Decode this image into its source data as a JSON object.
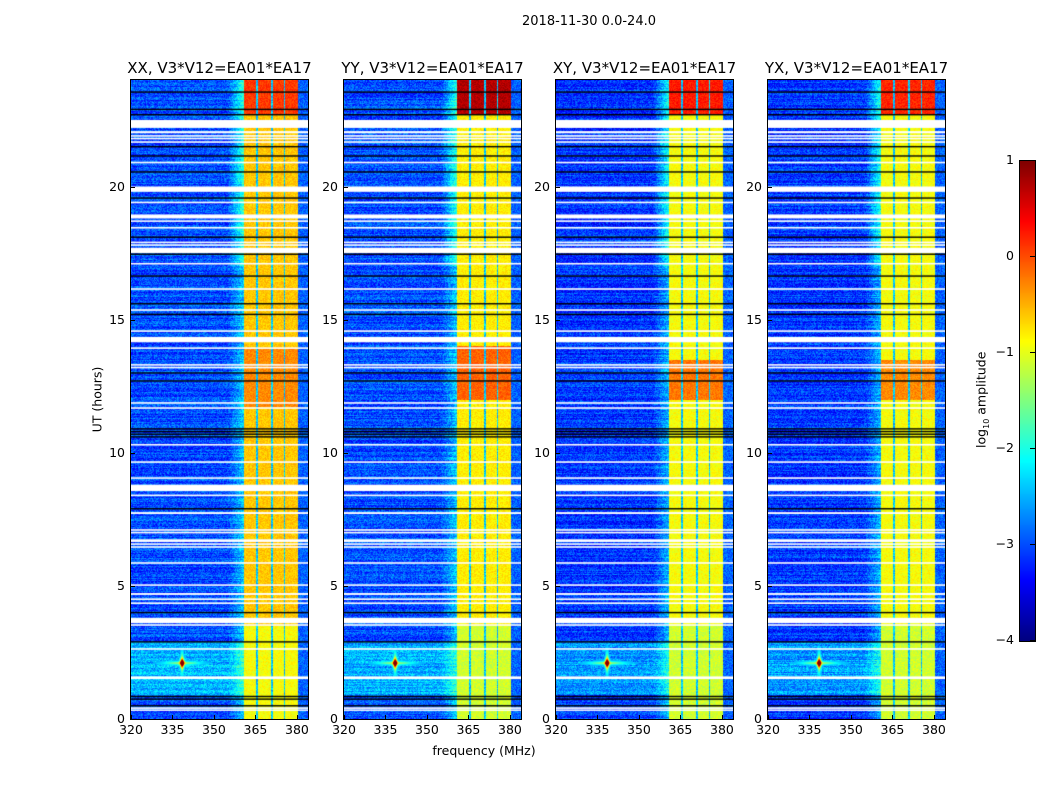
{
  "figure": {
    "suptitle": "2018-11-30 0.0-24.0",
    "xlabel": "frequency (MHz)",
    "ylabel": "UT (hours)",
    "colorbar": {
      "label_prefix": "log",
      "label_sub": "10",
      "label_suffix": " amplitude",
      "range": [
        -4,
        1
      ],
      "ticks": [
        "1",
        "0",
        "−1",
        "−2",
        "−3",
        "−4"
      ],
      "tick_values": [
        1,
        0,
        -1,
        -2,
        -3,
        -4
      ],
      "colormap": "jet"
    }
  },
  "chart_data": [
    {
      "type": "heatmap",
      "title": "XX, V3*V12=EA01*EA17",
      "xlim": [
        320,
        384
      ],
      "ylim": [
        0,
        24
      ],
      "xticks": [
        320,
        335,
        350,
        365,
        380
      ],
      "yticks": [
        0,
        5,
        10,
        15,
        20
      ],
      "background_level": -3.0,
      "band_levels": [
        [
          22.7,
          24,
          0.1
        ],
        [
          11.7,
          13.9,
          -0.3
        ],
        [
          3.5,
          22.7,
          -0.6
        ],
        [
          0,
          3.5,
          -0.9
        ]
      ]
    },
    {
      "type": "heatmap",
      "title": "YY, V3*V12=EA01*EA17",
      "xlim": [
        320,
        384
      ],
      "ylim": [
        0,
        24
      ],
      "xticks": [
        320,
        335,
        350,
        365,
        380
      ],
      "yticks": [
        0,
        5,
        10,
        15,
        20
      ],
      "background_level": -3.0,
      "band_levels": [
        [
          22.7,
          24,
          0.75
        ],
        [
          12,
          14,
          -0.1
        ],
        [
          3.5,
          22.7,
          -0.8
        ],
        [
          0,
          3.5,
          -1.1
        ]
      ]
    },
    {
      "type": "heatmap",
      "title": "XY, V3*V12=EA01*EA17",
      "xlim": [
        320,
        384
      ],
      "ylim": [
        0,
        24
      ],
      "xticks": [
        320,
        335,
        350,
        365,
        380
      ],
      "yticks": [
        0,
        5,
        10,
        15,
        20
      ],
      "background_level": -3.1,
      "band_levels": [
        [
          22.7,
          24,
          0.25
        ],
        [
          12,
          13.5,
          -0.2
        ],
        [
          3.5,
          22.7,
          -0.9
        ],
        [
          0,
          3.5,
          -1.1
        ]
      ]
    },
    {
      "type": "heatmap",
      "title": "YX, V3*V12=EA01*EA17",
      "xlim": [
        320,
        384
      ],
      "ylim": [
        0,
        24
      ],
      "xticks": [
        320,
        335,
        350,
        365,
        380
      ],
      "yticks": [
        0,
        5,
        10,
        15,
        20
      ],
      "background_level": -3.1,
      "band_levels": [
        [
          22.7,
          24,
          0.2
        ],
        [
          12,
          13.5,
          -0.3
        ],
        [
          3.5,
          22.7,
          -0.9
        ],
        [
          0,
          3.5,
          -1.1
        ]
      ]
    }
  ],
  "rfi_band_mhz": [
    360.7,
    380.4
  ],
  "channel_gaps_mhz": [
    365.5,
    371.0,
    375.6
  ],
  "source": {
    "freq_mhz": 338.5,
    "ut_hours": 2.1,
    "level": 0.6
  },
  "flagged_white_hours": [
    [
      22.2,
      22.5
    ],
    [
      22.0,
      22.08
    ],
    [
      21.87,
      21.93
    ],
    [
      21.77,
      21.83
    ],
    [
      21.64,
      21.7
    ],
    [
      20.87,
      20.93
    ],
    [
      19.8,
      20.0
    ],
    [
      19.37,
      19.43
    ],
    [
      18.8,
      18.95
    ],
    [
      18.67,
      18.73
    ],
    [
      18.42,
      18.48
    ],
    [
      17.87,
      17.93
    ],
    [
      17.77,
      17.83
    ],
    [
      17.5,
      17.7
    ],
    [
      17.07,
      17.13
    ],
    [
      16.12,
      16.18
    ],
    [
      15.33,
      15.39
    ],
    [
      14.54,
      14.6
    ],
    [
      14.15,
      14.35
    ],
    [
      13.9,
      13.96
    ],
    [
      13.27,
      13.33
    ],
    [
      13.17,
      13.23
    ],
    [
      11.84,
      11.9
    ],
    [
      11.65,
      11.71
    ],
    [
      10.27,
      10.33
    ],
    [
      9.62,
      9.68
    ],
    [
      9.02,
      9.08
    ],
    [
      8.56,
      8.8
    ],
    [
      8.37,
      8.43
    ],
    [
      7.7,
      7.77
    ],
    [
      7.07,
      7.13
    ],
    [
      6.97,
      7.03
    ],
    [
      6.65,
      6.75
    ],
    [
      6.54,
      6.6
    ],
    [
      6.43,
      6.49
    ],
    [
      5.83,
      5.89
    ],
    [
      5.0,
      5.06
    ],
    [
      4.66,
      4.73
    ],
    [
      4.47,
      4.53
    ],
    [
      4.32,
      4.38
    ],
    [
      3.6,
      3.8
    ],
    [
      3.5,
      3.56
    ],
    [
      2.6,
      2.66
    ],
    [
      1.5,
      1.6
    ],
    [
      0.38,
      0.44
    ],
    [
      0.31,
      0.36
    ]
  ],
  "flagged_black_hours": [
    23.55,
    22.9,
    22.7,
    21.5,
    21.15,
    20.55,
    19.57,
    18.1,
    17.46,
    16.64,
    15.6,
    15.2,
    13.0,
    12.7,
    10.9,
    10.8,
    10.7,
    10.6,
    7.9,
    4.0,
    2.9,
    0.85,
    0.75,
    0.5
  ]
}
